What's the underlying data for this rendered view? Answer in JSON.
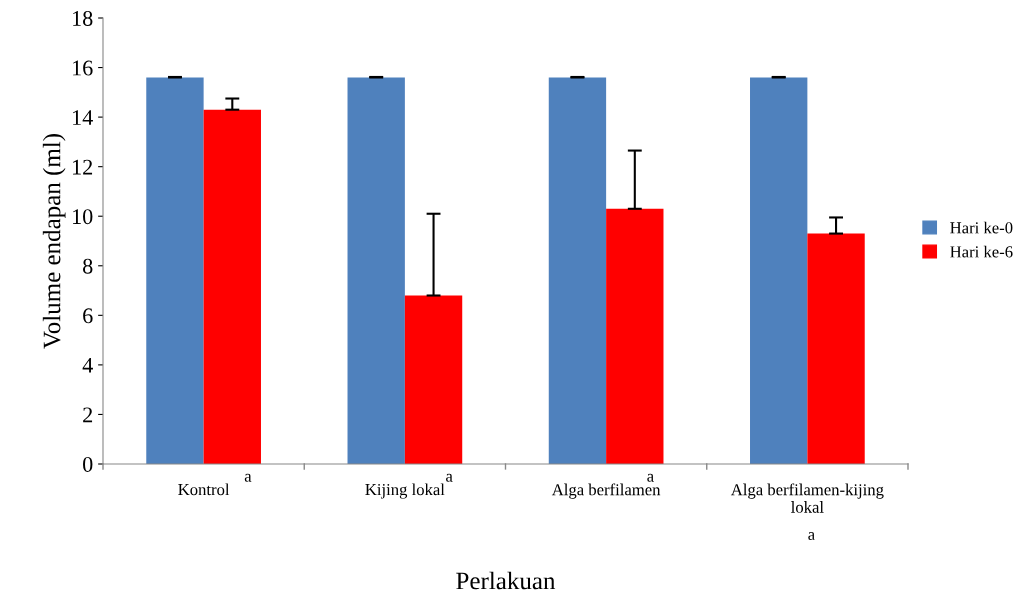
{
  "chart_data": {
    "type": "bar",
    "xlabel": "Perlakuan",
    "ylabel": "Volume endapan (ml)",
    "categories": [
      "Kontrol",
      "Kijing lokal",
      "Alga berfilamen",
      "Alga berfilamen-kijing lokal"
    ],
    "series": [
      {
        "name": "Hari ke-0",
        "color": "#4f81bd",
        "values": [
          15.6,
          15.6,
          15.6,
          15.6
        ],
        "errors": [
          [
            15.6,
            15.62
          ],
          [
            15.6,
            15.62
          ],
          [
            15.6,
            15.62
          ],
          [
            15.6,
            15.62
          ]
        ]
      },
      {
        "name": "Hari ke-6",
        "color": "#ff0000",
        "values": [
          14.3,
          6.8,
          10.3,
          9.3
        ],
        "errors": [
          [
            14.3,
            14.75
          ],
          [
            6.8,
            10.1
          ],
          [
            10.3,
            12.65
          ],
          [
            9.3,
            9.95
          ]
        ]
      }
    ],
    "annotations": [
      "a",
      "a",
      "a",
      "a"
    ],
    "ylim": [
      0,
      18
    ],
    "yticks": [
      0,
      2,
      4,
      6,
      8,
      10,
      12,
      14,
      16,
      18
    ],
    "grid": false,
    "legend": "right"
  }
}
